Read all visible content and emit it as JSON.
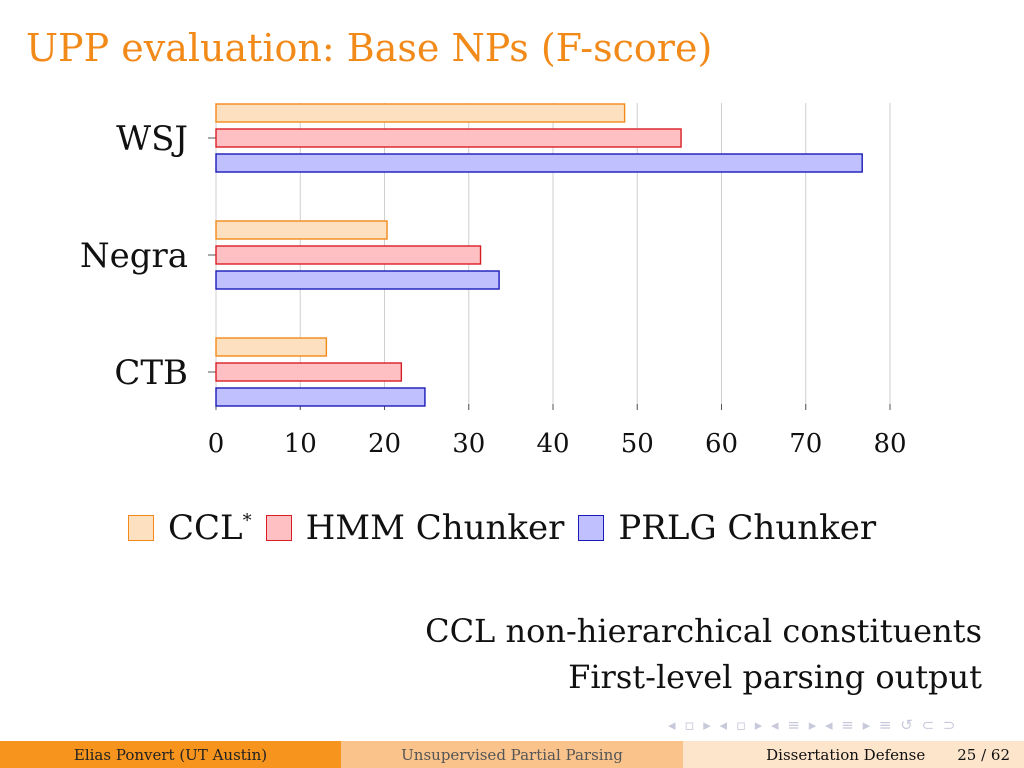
{
  "slide": {
    "title": "UPP evaluation: Base NPs (F-score)",
    "notes": [
      "CCL non-hierarchical constituents",
      "First-level parsing output"
    ]
  },
  "navigation": {
    "symbols": "◂ ▫ ▸ ◂ ▫ ▸ ◂ ≡ ▸ ◂ ≡ ▸ ≡ ↺ ⊂ ⊃"
  },
  "footer": {
    "author": "Elias Ponvert (UT Austin)",
    "talk_title": "Unsupervised Partial Parsing",
    "event": "Dissertation Defense",
    "page": "25 / 62"
  },
  "chart_data": {
    "type": "bar",
    "orientation": "horizontal",
    "categories": [
      "WSJ",
      "Negra",
      "CTB"
    ],
    "series": [
      {
        "name": "CCL",
        "name_superscript": "*",
        "values": [
          48.5,
          20.3,
          13.1
        ],
        "fill": "#fce0bf",
        "stroke": "#f28a1a"
      },
      {
        "name": "HMM Chunker",
        "values": [
          55.2,
          31.4,
          22.0
        ],
        "fill": "#ffc0c4",
        "stroke": "#d81e25"
      },
      {
        "name": "PRLG Chunker",
        "values": [
          76.7,
          33.6,
          24.8
        ],
        "fill": "#c0c0ff",
        "stroke": "#1a1ab8"
      }
    ],
    "xlim": [
      0,
      80
    ],
    "xticks": [
      0,
      10,
      20,
      30,
      40,
      50,
      60,
      70,
      80
    ],
    "grid": "vertical",
    "legend": "bottom",
    "xlabel": "",
    "ylabel": ""
  }
}
